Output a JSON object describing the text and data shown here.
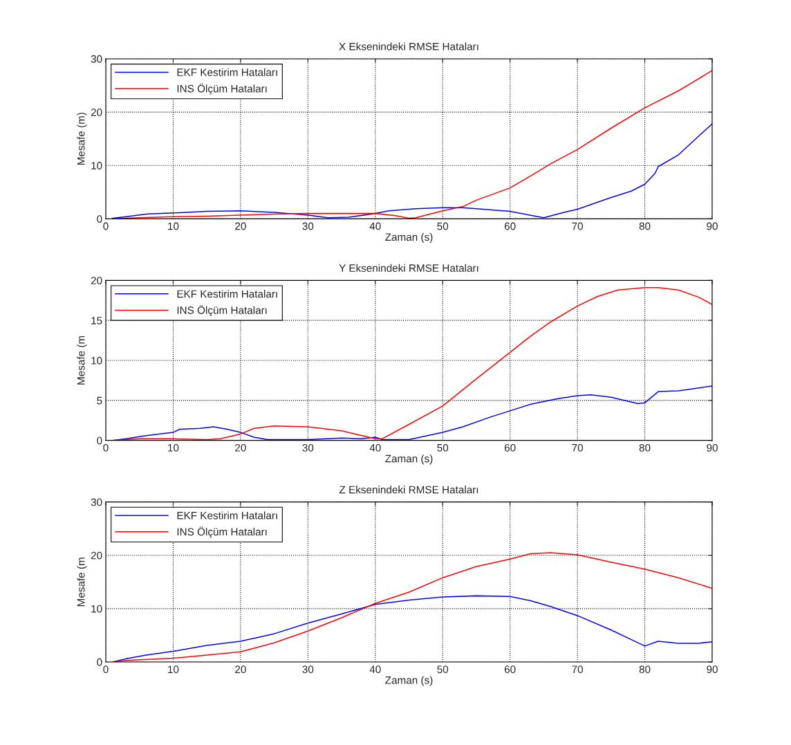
{
  "chart_data": [
    {
      "type": "line",
      "title": "X Eksenindeki RMSE Hataları",
      "xlabel": "Zaman (s)",
      "ylabel": "Mesafe (m)",
      "xlim": [
        0,
        90
      ],
      "xticks": [
        0,
        10,
        20,
        30,
        40,
        50,
        60,
        70,
        80,
        90
      ],
      "ylim": [
        0,
        30
      ],
      "yticks": [
        0,
        10,
        20,
        30
      ],
      "grid": true,
      "legend": "top left",
      "series": [
        {
          "name": "EKF Kestirim Hataları",
          "color": "#0000ff",
          "x": [
            1,
            3,
            6,
            10,
            15,
            20,
            25,
            30,
            33,
            36,
            40,
            42,
            46,
            50,
            53,
            56,
            60,
            65,
            68,
            70,
            75,
            78,
            80,
            81.5,
            82,
            85,
            88,
            90
          ],
          "values": [
            0.1,
            0.4,
            0.9,
            1.1,
            1.4,
            1.5,
            1.2,
            0.7,
            0.2,
            0.3,
            1.0,
            1.5,
            1.9,
            2.1,
            2.1,
            1.8,
            1.4,
            0.2,
            1.2,
            1.8,
            4.0,
            5.2,
            6.5,
            8.5,
            9.8,
            12,
            15.5,
            17.8
          ]
        },
        {
          "name": "INS Ölçüm Hataları",
          "color": "#ff0000",
          "x": [
            1,
            5,
            10,
            15,
            20,
            25,
            30,
            40,
            43,
            45,
            46,
            50,
            53,
            55,
            60,
            63,
            66,
            70,
            75,
            80,
            85,
            87,
            90
          ],
          "values": [
            0,
            0.2,
            0.4,
            0.5,
            0.7,
            0.9,
            1.0,
            1.0,
            0.6,
            0.1,
            0.2,
            1.5,
            2.3,
            3.5,
            5.8,
            8,
            10.3,
            13,
            17,
            20.8,
            24,
            25.5,
            27.8
          ]
        }
      ]
    },
    {
      "type": "line",
      "title": "Y Eksenindeki RMSE Hataları",
      "xlabel": "Zaman (s)",
      "ylabel": "Mesafe (m",
      "xlim": [
        0,
        90
      ],
      "xticks": [
        0,
        10,
        20,
        30,
        40,
        50,
        60,
        70,
        80,
        90
      ],
      "ylim": [
        0,
        20
      ],
      "yticks": [
        0,
        5,
        10,
        15,
        20
      ],
      "grid": true,
      "legend": "top left",
      "series": [
        {
          "name": "EKF Kestirim Hataları",
          "color": "#0000ff",
          "x": [
            1,
            3,
            6,
            10,
            11,
            14,
            16,
            18,
            20,
            22,
            24,
            30,
            35,
            38,
            40,
            41,
            45,
            50,
            53,
            57,
            60,
            63,
            67,
            70,
            72,
            75,
            79,
            80,
            82,
            85,
            90
          ],
          "values": [
            0,
            0.2,
            0.6,
            1.0,
            1.4,
            1.5,
            1.7,
            1.4,
            1.0,
            0.4,
            0.1,
            0.1,
            0.3,
            0.2,
            0.4,
            0.1,
            0.1,
            1.0,
            1.7,
            2.9,
            3.7,
            4.5,
            5.2,
            5.6,
            5.7,
            5.4,
            4.6,
            4.7,
            6.1,
            6.2,
            6.8
          ]
        },
        {
          "name": "INS Ölçüm Hataları",
          "color": "#ff0000",
          "x": [
            1,
            5,
            10,
            15,
            17,
            20,
            22,
            25,
            30,
            35,
            40,
            41,
            45,
            50,
            55,
            60,
            63,
            66,
            70,
            73,
            76,
            80,
            82,
            85,
            88,
            90
          ],
          "values": [
            0,
            0.2,
            0.2,
            0.1,
            0.2,
            0.8,
            1.5,
            1.8,
            1.7,
            1.2,
            0.2,
            0.2,
            2.0,
            4.3,
            7.7,
            11.0,
            13,
            14.8,
            16.8,
            18.0,
            18.8,
            19.1,
            19.1,
            18.8,
            17.9,
            17.0
          ]
        }
      ]
    },
    {
      "type": "line",
      "title": "Z Eksenindeki RMSE Hataları",
      "xlabel": "Zaman (s)",
      "ylabel": "Mesafe (m",
      "xlim": [
        0,
        90
      ],
      "xticks": [
        0,
        10,
        20,
        30,
        40,
        50,
        60,
        70,
        80,
        90
      ],
      "ylim": [
        0,
        30
      ],
      "yticks": [
        0,
        10,
        20,
        30
      ],
      "grid": true,
      "legend": "top left",
      "series": [
        {
          "name": "EKF Kestirim Hataları",
          "color": "#0000ff",
          "x": [
            1,
            3,
            6,
            10,
            15,
            20,
            25,
            30,
            35,
            40,
            45,
            50,
            55,
            60,
            63,
            66,
            70,
            75,
            78,
            80,
            82,
            85,
            88,
            90
          ],
          "values": [
            0,
            0.6,
            1.3,
            2.0,
            3.1,
            3.9,
            5.3,
            7.3,
            9.0,
            10.8,
            11.6,
            12.2,
            12.4,
            12.3,
            11.5,
            10.4,
            8.7,
            6.0,
            4.2,
            3.0,
            3.9,
            3.5,
            3.5,
            3.8
          ]
        },
        {
          "name": "INS Ölçüm Hataları",
          "color": "#ff0000",
          "x": [
            1,
            3,
            10,
            15,
            20,
            25,
            30,
            35,
            40,
            45,
            50,
            55,
            60,
            63,
            66,
            70,
            75,
            80,
            85,
            90
          ],
          "values": [
            0,
            0.3,
            0.7,
            1.3,
            1.9,
            3.6,
            5.8,
            8.3,
            11,
            13.1,
            15.8,
            17.9,
            19.3,
            20.3,
            20.5,
            20.1,
            18.7,
            17.4,
            15.8,
            13.8
          ]
        }
      ]
    }
  ]
}
